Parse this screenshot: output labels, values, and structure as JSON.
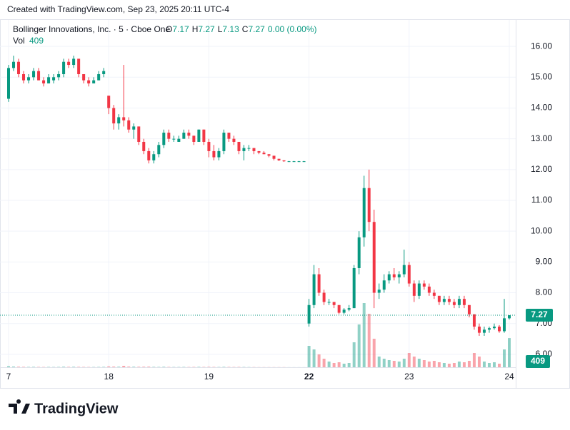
{
  "header": {
    "created": "Created with TradingView.com, Sep 23, 2025 20:11 UTC-4",
    "logo": "TradingView"
  },
  "chart_data": {
    "type": "candlestick",
    "title": "Bollinger Innovations, Inc. · 5 · Cboe One",
    "ohlc_labels": [
      "O",
      "H",
      "L",
      "C"
    ],
    "change": "0.00 (0.00%)",
    "volume_label": "Vol",
    "categories": [
      "7",
      null,
      null,
      null,
      null,
      null,
      null,
      null,
      null,
      null,
      null,
      null,
      null,
      null,
      null,
      null,
      null,
      null,
      null,
      null,
      "18",
      null,
      null,
      null,
      null,
      null,
      null,
      null,
      null,
      null,
      null,
      null,
      null,
      null,
      null,
      null,
      null,
      null,
      null,
      null,
      "19",
      null,
      null,
      null,
      null,
      null,
      null,
      null,
      null,
      null,
      null,
      null,
      null,
      null,
      null,
      null,
      null,
      null,
      null,
      null,
      "22",
      null,
      null,
      null,
      null,
      null,
      null,
      null,
      null,
      null,
      null,
      null,
      null,
      null,
      null,
      null,
      null,
      null,
      null,
      null,
      "23",
      null,
      null,
      null,
      null,
      null,
      null,
      null,
      null,
      null,
      null,
      null,
      null,
      null,
      null,
      null,
      null,
      null,
      null,
      null,
      "24"
    ],
    "open": [
      14.3,
      15.3,
      15.5,
      15.1,
      14.9,
      15.0,
      15.2,
      14.9,
      14.8,
      14.9,
      15.0,
      15.1,
      15.5,
      15.4,
      15.6,
      15.1,
      14.9,
      14.8,
      14.9,
      15.1,
      14.4,
      14.0,
      13.5,
      13.7,
      13.6,
      13.3,
      13.4,
      12.9,
      12.6,
      12.3,
      12.5,
      12.8,
      13.2,
      13.0,
      12.9,
      13.0,
      13.2,
      13.1,
      12.9,
      13.3,
      12.9,
      12.6,
      12.4,
      12.6,
      13.2,
      13.0,
      12.9,
      12.6,
      12.7,
      12.7,
      12.6,
      12.55,
      12.5,
      12.45,
      12.35,
      12.3,
      12.27,
      12.27,
      12.27,
      12.27,
      7.0,
      7.6,
      8.6,
      8.0,
      7.7,
      7.7,
      7.6,
      7.35,
      7.45,
      7.5,
      8.8,
      9.8,
      11.4,
      10.3,
      8.0,
      8.1,
      8.4,
      8.6,
      8.5,
      8.6,
      8.9,
      8.3,
      7.9,
      8.3,
      8.2,
      8.0,
      7.9,
      7.7,
      7.8,
      7.7,
      7.6,
      7.8,
      7.6,
      7.3,
      6.9,
      6.7,
      6.8,
      6.85,
      6.9,
      6.75,
      7.17
    ],
    "high": [
      15.4,
      15.7,
      15.6,
      15.2,
      15.1,
      15.3,
      15.3,
      15.0,
      15.1,
      15.1,
      15.2,
      15.6,
      15.6,
      15.7,
      15.6,
      15.1,
      15.0,
      15.0,
      15.2,
      15.3,
      14.4,
      14.1,
      13.8,
      15.4,
      13.7,
      13.5,
      13.4,
      13.0,
      12.7,
      12.6,
      12.9,
      13.3,
      13.3,
      13.1,
      13.1,
      13.3,
      13.3,
      13.1,
      13.3,
      13.3,
      13.0,
      12.8,
      12.7,
      13.3,
      13.2,
      13.1,
      12.9,
      12.8,
      12.8,
      12.7,
      12.6,
      12.6,
      12.5,
      12.45,
      12.35,
      12.3,
      12.28,
      12.28,
      12.28,
      12.28,
      7.8,
      8.9,
      8.8,
      8.1,
      7.8,
      7.7,
      7.6,
      7.5,
      7.6,
      8.9,
      10.0,
      11.8,
      12.0,
      10.7,
      8.3,
      8.6,
      8.7,
      8.8,
      8.7,
      9.4,
      9.0,
      8.4,
      8.4,
      8.4,
      8.3,
      8.1,
      7.9,
      7.9,
      7.9,
      7.8,
      7.9,
      7.9,
      7.6,
      7.3,
      7.0,
      6.9,
      6.9,
      7.0,
      6.95,
      7.8,
      7.27
    ],
    "low": [
      14.2,
      15.2,
      15.0,
      14.8,
      14.8,
      14.9,
      14.9,
      14.7,
      14.8,
      14.8,
      14.9,
      15.0,
      15.3,
      15.3,
      15.0,
      14.8,
      14.7,
      14.8,
      14.9,
      15.0,
      13.8,
      13.3,
      13.3,
      13.4,
      13.2,
      13.0,
      12.8,
      12.5,
      12.2,
      12.2,
      12.4,
      12.7,
      12.9,
      12.9,
      12.9,
      13.0,
      13.0,
      12.8,
      12.9,
      12.8,
      12.4,
      12.3,
      12.3,
      12.5,
      12.9,
      12.8,
      12.5,
      12.3,
      12.6,
      12.5,
      12.5,
      12.5,
      12.4,
      12.3,
      12.28,
      12.25,
      12.25,
      12.25,
      12.25,
      12.25,
      6.9,
      7.5,
      7.9,
      7.6,
      7.6,
      7.5,
      7.3,
      7.3,
      7.4,
      7.5,
      8.6,
      9.5,
      10.0,
      7.5,
      7.8,
      8.0,
      8.3,
      8.4,
      8.3,
      8.5,
      8.2,
      7.7,
      7.8,
      8.1,
      7.9,
      7.8,
      7.6,
      7.6,
      7.6,
      7.5,
      7.5,
      7.5,
      7.2,
      6.8,
      6.6,
      6.6,
      6.7,
      6.8,
      6.7,
      6.7,
      7.13
    ],
    "close": [
      15.3,
      15.5,
      15.1,
      14.9,
      15.0,
      15.2,
      14.9,
      14.8,
      15.0,
      15.0,
      15.1,
      15.5,
      15.4,
      15.6,
      15.1,
      14.9,
      14.8,
      14.9,
      15.1,
      15.2,
      14.0,
      13.5,
      13.7,
      13.6,
      13.3,
      13.4,
      12.9,
      12.6,
      12.3,
      12.5,
      12.8,
      13.2,
      13.0,
      13.0,
      13.0,
      13.2,
      13.1,
      12.9,
      13.3,
      12.9,
      12.6,
      12.4,
      12.6,
      13.2,
      13.0,
      12.9,
      12.6,
      12.7,
      12.7,
      12.6,
      12.55,
      12.5,
      12.45,
      12.35,
      12.3,
      12.27,
      12.27,
      12.27,
      12.27,
      12.27,
      7.6,
      8.6,
      8.0,
      7.7,
      7.7,
      7.6,
      7.35,
      7.45,
      7.5,
      8.8,
      9.8,
      11.4,
      10.3,
      8.0,
      8.1,
      8.4,
      8.6,
      8.5,
      8.6,
      8.9,
      8.3,
      7.9,
      8.3,
      8.2,
      8.0,
      7.9,
      7.7,
      7.8,
      7.7,
      7.6,
      7.8,
      7.6,
      7.3,
      6.9,
      6.7,
      6.8,
      6.85,
      6.9,
      6.75,
      7.17,
      7.27
    ],
    "volume": [
      15,
      10,
      8,
      6,
      5,
      6,
      5,
      4,
      5,
      4,
      5,
      8,
      6,
      7,
      6,
      5,
      4,
      4,
      5,
      6,
      12,
      10,
      8,
      20,
      10,
      8,
      7,
      8,
      9,
      6,
      5,
      7,
      5,
      4,
      4,
      5,
      4,
      5,
      6,
      5,
      6,
      5,
      4,
      6,
      5,
      4,
      5,
      4,
      3,
      3,
      2,
      2,
      2,
      2,
      2,
      2,
      1,
      1,
      1,
      1,
      300,
      250,
      180,
      120,
      80,
      60,
      70,
      50,
      60,
      350,
      600,
      900,
      750,
      400,
      150,
      120,
      100,
      90,
      80,
      120,
      200,
      150,
      120,
      100,
      80,
      90,
      70,
      60,
      50,
      60,
      80,
      70,
      90,
      200,
      150,
      80,
      60,
      70,
      50,
      250,
      409
    ],
    "up_color": "#089981",
    "down_color": "#f23645",
    "ylim": [
      5.58,
      16.86
    ],
    "yticks": [
      {
        "value": 6,
        "label": "6.00"
      },
      {
        "value": 7,
        "label": "7.00"
      },
      {
        "value": 8,
        "label": "8.00"
      },
      {
        "value": 9,
        "label": "9.00"
      },
      {
        "value": 10,
        "label": "10.00"
      },
      {
        "value": 11,
        "label": "11.00"
      },
      {
        "value": 12,
        "label": "12.00"
      },
      {
        "value": 13,
        "label": "13.00"
      },
      {
        "value": 14,
        "label": "14.00"
      },
      {
        "value": 15,
        "label": "15.00"
      },
      {
        "value": 16,
        "label": "16.00"
      }
    ],
    "volume_ylim": [
      0,
      1000
    ],
    "grid": true
  }
}
